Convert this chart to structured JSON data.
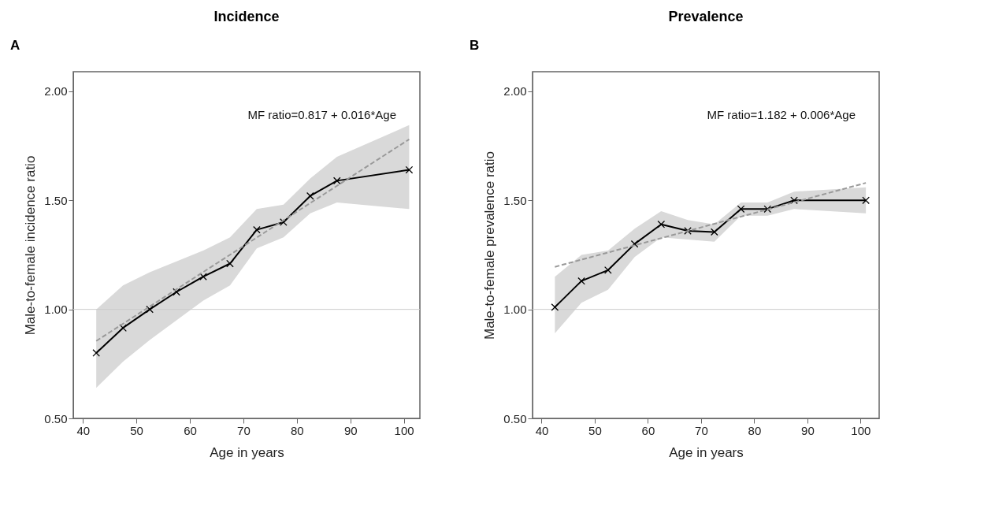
{
  "chart_data": [
    {
      "type": "line",
      "title": "Incidence",
      "xlabel": "Age in years",
      "ylabel": "Male-to-female incidence ratio",
      "annotations": [
        "A",
        "MF ratio=0.817 + 0.016*Age"
      ],
      "xlim": [
        38.2,
        103
      ],
      "ylim": [
        0.5,
        2.09
      ],
      "xticks": [
        40,
        50,
        60,
        70,
        80,
        90,
        100
      ],
      "yticks": [
        {
          "value": 0.5,
          "label": "0.50"
        },
        {
          "value": 1,
          "label": "1.00"
        },
        {
          "value": 1.5,
          "label": "1.50"
        },
        {
          "value": 2,
          "label": "2.00"
        }
      ],
      "grid": false,
      "marker": "cross",
      "line_style": "solid",
      "ref_lines": [
        {
          "axis": "y",
          "value": 1,
          "color": "#cccccc"
        }
      ],
      "series": [
        {
          "color": "#000000",
          "x": [
            42.5,
            47.5,
            52.5,
            57.5,
            62.5,
            67.5,
            72.5,
            77.5,
            82.5,
            87.5,
            101
          ],
          "values": [
            0.8,
            0.915,
            1.0,
            1.08,
            1.15,
            1.21,
            1.365,
            1.4,
            1.52,
            1.59,
            1.64
          ],
          "lower": [
            0.64,
            0.76,
            0.86,
            0.95,
            1.04,
            1.11,
            1.28,
            1.33,
            1.44,
            1.49,
            1.46
          ],
          "upper": [
            1.0,
            1.11,
            1.17,
            1.22,
            1.27,
            1.33,
            1.46,
            1.48,
            1.6,
            1.7,
            1.845
          ]
        },
        {
          "type": "line",
          "color": "#999999",
          "line_style": "dashed",
          "marker": "none",
          "x": [
            42.5,
            101
          ],
          "values": [
            0.855,
            1.78
          ]
        }
      ]
    },
    {
      "type": "line",
      "title": "Prevalence",
      "xlabel": "Age in years",
      "ylabel": "Male-to-female prevalence ratio",
      "annotations": [
        "B",
        "MF ratio=1.182 + 0.006*Age"
      ],
      "xlim": [
        38.3,
        103.5
      ],
      "ylim": [
        0.5,
        2.09
      ],
      "xticks": [
        40,
        50,
        60,
        70,
        80,
        90,
        100
      ],
      "yticks": [
        {
          "value": 0.5,
          "label": "0.50"
        },
        {
          "value": 1,
          "label": "1.00"
        },
        {
          "value": 1.5,
          "label": "1.50"
        },
        {
          "value": 2,
          "label": "2.00"
        }
      ],
      "grid": false,
      "marker": "cross",
      "line_style": "solid",
      "ref_lines": [
        {
          "axis": "y",
          "value": 1,
          "color": "#cccccc"
        }
      ],
      "series": [
        {
          "color": "#000000",
          "x": [
            42.5,
            47.5,
            52.5,
            57.5,
            62.5,
            67.5,
            72.5,
            77.5,
            82.5,
            87.5,
            101
          ],
          "values": [
            1.01,
            1.13,
            1.18,
            1.3,
            1.39,
            1.36,
            1.355,
            1.46,
            1.46,
            1.5,
            1.5
          ],
          "lower": [
            0.89,
            1.03,
            1.09,
            1.24,
            1.33,
            1.32,
            1.31,
            1.43,
            1.43,
            1.46,
            1.44
          ],
          "upper": [
            1.15,
            1.25,
            1.27,
            1.37,
            1.45,
            1.41,
            1.39,
            1.49,
            1.49,
            1.54,
            1.56
          ]
        },
        {
          "type": "line",
          "color": "#999999",
          "line_style": "dashed",
          "marker": "none",
          "x": [
            42.5,
            101
          ],
          "values": [
            1.195,
            1.58
          ]
        }
      ]
    }
  ]
}
